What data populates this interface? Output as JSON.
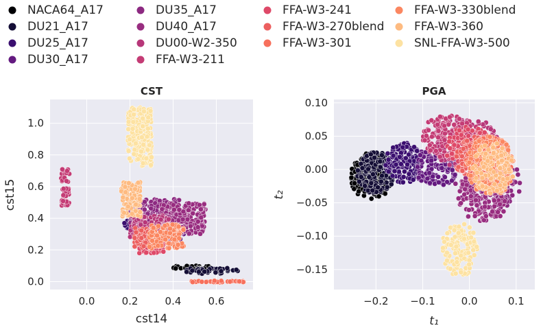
{
  "chart_data": [
    {
      "type": "scatter",
      "title": "CST",
      "xlabel": "cst14",
      "ylabel": "cst15",
      "xlim": [
        -0.17,
        0.77
      ],
      "ylim": [
        -0.05,
        1.15
      ],
      "xticks": [
        "0.0",
        "0.2",
        "0.4",
        "0.6"
      ],
      "yticks": [
        "0.0",
        "0.2",
        "0.4",
        "0.6",
        "0.8",
        "1.0"
      ],
      "grid": true,
      "clusters": [
        {
          "series": "NACA64_A17",
          "x": [
            0.38,
            0.58
          ],
          "y": [
            0.075,
            0.1
          ]
        },
        {
          "series": "DU21_A17",
          "x": [
            0.46,
            0.7
          ],
          "y": [
            0.05,
            0.085
          ]
        },
        {
          "series": "DU25_A17",
          "x": [
            0.17,
            0.35
          ],
          "y": [
            0.33,
            0.39
          ]
        },
        {
          "series": "DU30_A17",
          "x": [
            0.28,
            0.45
          ],
          "y": [
            0.26,
            0.36
          ]
        },
        {
          "series": "DU35_A17",
          "x": [
            0.2,
            0.43
          ],
          "y": [
            0.36,
            0.52
          ]
        },
        {
          "series": "DU40_A17",
          "x": [
            0.34,
            0.55
          ],
          "y": [
            0.3,
            0.5
          ]
        },
        {
          "series": "DU00-W2-350",
          "x": [
            0.2,
            0.38
          ],
          "y": [
            0.28,
            0.42
          ]
        },
        {
          "series": "FFA-W3-211",
          "x": [
            -0.12,
            -0.08
          ],
          "y": [
            0.48,
            0.71
          ]
        },
        {
          "series": "FFA-W3-241",
          "x": [
            0.23,
            0.36
          ],
          "y": [
            0.18,
            0.27
          ]
        },
        {
          "series": "FFA-W3-270blend",
          "x": [
            0.22,
            0.32
          ],
          "y": [
            0.21,
            0.34
          ]
        },
        {
          "series": "FFA-W3-301",
          "x": [
            0.48,
            0.73
          ],
          "y": [
            -0.005,
            0.005
          ]
        },
        {
          "series": "FFA-W3-330blend",
          "x": [
            0.29,
            0.45
          ],
          "y": [
            0.21,
            0.36
          ]
        },
        {
          "series": "FFA-W3-360",
          "x": [
            0.16,
            0.25
          ],
          "y": [
            0.41,
            0.63
          ]
        },
        {
          "series": "SNL-FFA-W3-500",
          "x": [
            0.19,
            0.3
          ],
          "y": [
            0.73,
            1.1
          ]
        }
      ]
    },
    {
      "type": "scatter",
      "title": "PGA",
      "xlabel": "t₁",
      "ylabel": "t₂",
      "xlim": [
        -0.29,
        0.14
      ],
      "ylim": [
        -0.18,
        0.105
      ],
      "xticks": [
        "−0.2",
        "−0.1",
        "0.0",
        "0.1"
      ],
      "yticks": [
        "0.10",
        "0.05",
        "0.00",
        "−0.05",
        "−0.10",
        "−0.15"
      ],
      "grid": true,
      "clusters": [
        {
          "series": "NACA64_A17",
          "cx": -0.21,
          "cy": -0.01,
          "rx": 0.045,
          "ry": 0.035
        },
        {
          "series": "DU21_A17",
          "cx": -0.2,
          "cy": -0.005,
          "rx": 0.04,
          "ry": 0.032
        },
        {
          "series": "DU25_A17",
          "cx": -0.14,
          "cy": 0.01,
          "rx": 0.04,
          "ry": 0.03
        },
        {
          "series": "DU30_A17",
          "cx": -0.07,
          "cy": 0.005,
          "rx": 0.05,
          "ry": 0.03
        },
        {
          "series": "DU35_A17",
          "cx": 0.04,
          "cy": -0.02,
          "rx": 0.07,
          "ry": 0.045
        },
        {
          "series": "DU40_A17",
          "cx": 0.03,
          "cy": -0.04,
          "rx": 0.055,
          "ry": 0.04
        },
        {
          "series": "DU00-W2-350",
          "cx": -0.01,
          "cy": 0.04,
          "rx": 0.07,
          "ry": 0.04
        },
        {
          "series": "FFA-W3-211",
          "cx": -0.04,
          "cy": 0.05,
          "rx": 0.06,
          "ry": 0.035
        },
        {
          "series": "FFA-W3-241",
          "cx": 0.0,
          "cy": 0.03,
          "rx": 0.05,
          "ry": 0.035
        },
        {
          "series": "FFA-W3-270blend",
          "cx": 0.02,
          "cy": 0.015,
          "rx": 0.05,
          "ry": 0.035
        },
        {
          "series": "FFA-W3-301",
          "cx": 0.04,
          "cy": 0.01,
          "rx": 0.05,
          "ry": 0.04
        },
        {
          "series": "FFA-W3-330blend",
          "cx": 0.045,
          "cy": 0.005,
          "rx": 0.05,
          "ry": 0.045
        },
        {
          "series": "FFA-W3-360",
          "cx": 0.05,
          "cy": 0.0,
          "rx": 0.045,
          "ry": 0.04
        },
        {
          "series": "SNL-FFA-W3-500",
          "cx": -0.02,
          "cy": -0.12,
          "rx": 0.04,
          "ry": 0.04
        }
      ]
    }
  ],
  "legend": {
    "placement": "top",
    "entries": [
      {
        "label": "NACA64_A17",
        "color": "#000004"
      },
      {
        "label": "DU21_A17",
        "color": "#140e36"
      },
      {
        "label": "DU25_A17",
        "color": "#3b0f70"
      },
      {
        "label": "DU30_A17",
        "color": "#641a80"
      },
      {
        "label": "DU35_A17",
        "color": "#8c2981"
      },
      {
        "label": "DU40_A17",
        "color": "#982d80"
      },
      {
        "label": "DU00-W2-350",
        "color": "#b73779"
      },
      {
        "label": "FFA-W3-211",
        "color": "#c43c75"
      },
      {
        "label": "FFA-W3-241",
        "color": "#de4968"
      },
      {
        "label": "FFA-W3-270blend",
        "color": "#ec5f5f"
      },
      {
        "label": "FFA-W3-301",
        "color": "#f7705c"
      },
      {
        "label": "FFA-W3-330blend",
        "color": "#fb8761"
      },
      {
        "label": "FFA-W3-360",
        "color": "#febb81"
      },
      {
        "label": "SNL-FFA-W3-500",
        "color": "#fde2a2"
      }
    ]
  }
}
